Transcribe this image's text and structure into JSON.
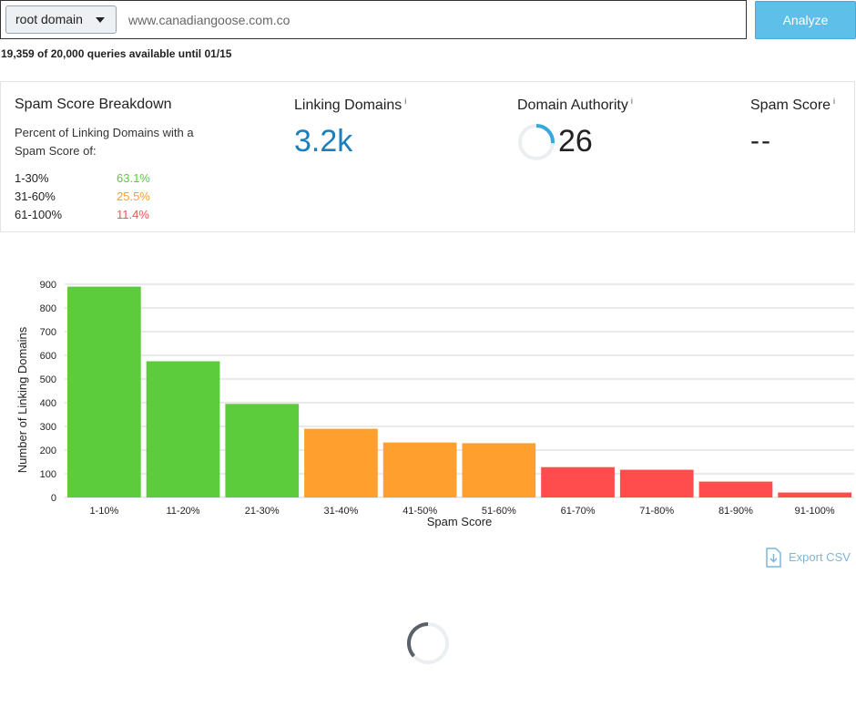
{
  "search": {
    "scope": "root domain",
    "url": "www.canadiangoose.com.co",
    "analyze_label": "Analyze"
  },
  "quota_text": "19,359 of 20,000 queries available until 01/15",
  "breakdown": {
    "title": "Spam Score Breakdown",
    "desc": "Percent of Linking Domains with a Spam Score of:",
    "rows": [
      {
        "range": "1-30%",
        "pct": "63.1%",
        "color": "#5ccb3c"
      },
      {
        "range": "31-60%",
        "pct": "25.5%",
        "color": "#ff9f2e"
      },
      {
        "range": "61-100%",
        "pct": "11.4%",
        "color": "#ff4d4d"
      }
    ]
  },
  "metrics": {
    "linking_domains": {
      "label": "Linking Domains",
      "info": "i",
      "value": "3.2k"
    },
    "domain_authority": {
      "label": "Domain Authority",
      "info": "i",
      "value": "26",
      "ring_fraction": 0.26
    },
    "spam_score": {
      "label": "Spam Score",
      "info": "i",
      "value": "--"
    }
  },
  "chart_data": {
    "type": "bar",
    "categories": [
      "1-10%",
      "11-20%",
      "21-30%",
      "31-40%",
      "41-50%",
      "51-60%",
      "61-70%",
      "71-80%",
      "81-90%",
      "91-100%"
    ],
    "values": [
      890,
      575,
      395,
      290,
      232,
      229,
      128,
      117,
      67,
      21
    ],
    "colors": [
      "#5ccb3c",
      "#5ccb3c",
      "#5ccb3c",
      "#ff9f2e",
      "#ff9f2e",
      "#ff9f2e",
      "#ff4d4d",
      "#ff4d4d",
      "#ff4d4d",
      "#ff4d4d"
    ],
    "xlabel": "Spam Score",
    "ylabel": "Number of Linking Domains",
    "ylim": [
      0,
      900
    ],
    "yticks": [
      0,
      100,
      200,
      300,
      400,
      500,
      600,
      700,
      800,
      900
    ],
    "grid": true
  },
  "export_label": "Export CSV"
}
